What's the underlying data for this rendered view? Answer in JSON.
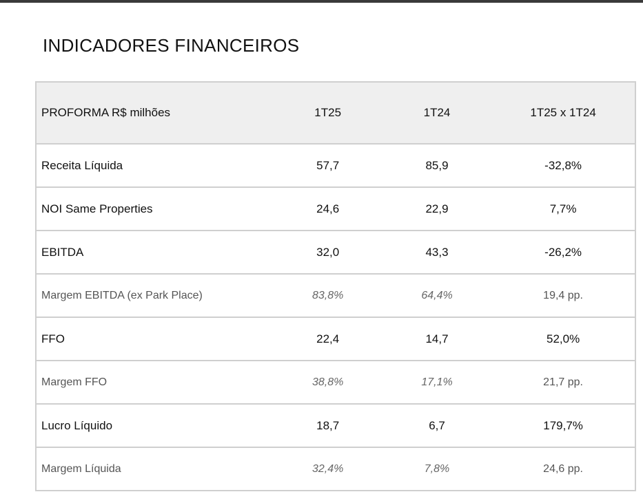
{
  "page": {
    "title": "INDICADORES FINANCEIROS"
  },
  "table": {
    "headers": {
      "label": "PROFORMA R$ milhões",
      "col1": "1T25",
      "col2": "1T24",
      "col3": "1T25 x 1T24"
    },
    "rows": [
      {
        "label": "Receita Líquida",
        "v1": "57,7",
        "v2": "85,9",
        "var": "-32,8%"
      },
      {
        "label": "NOI Same Properties",
        "v1": "24,6",
        "v2": "22,9",
        "var": "7,7%"
      },
      {
        "label": "EBITDA",
        "v1": "32,0",
        "v2": "43,3",
        "var": "-26,2%"
      },
      {
        "label": "Margem EBITDA (ex Park Place)",
        "v1": "83,8%",
        "v2": "64,4%",
        "var": "19,4 pp."
      },
      {
        "label": "FFO",
        "v1": "22,4",
        "v2": "14,7",
        "var": "52,0%"
      },
      {
        "label": "Margem FFO",
        "v1": "38,8%",
        "v2": "17,1%",
        "var": "21,7 pp."
      },
      {
        "label": "Lucro Líquido",
        "v1": "18,7",
        "v2": "6,7",
        "var": "179,7%"
      },
      {
        "label": "Margem Líquida",
        "v1": "32,4%",
        "v2": "7,8%",
        "var": "24,6 pp."
      }
    ]
  }
}
